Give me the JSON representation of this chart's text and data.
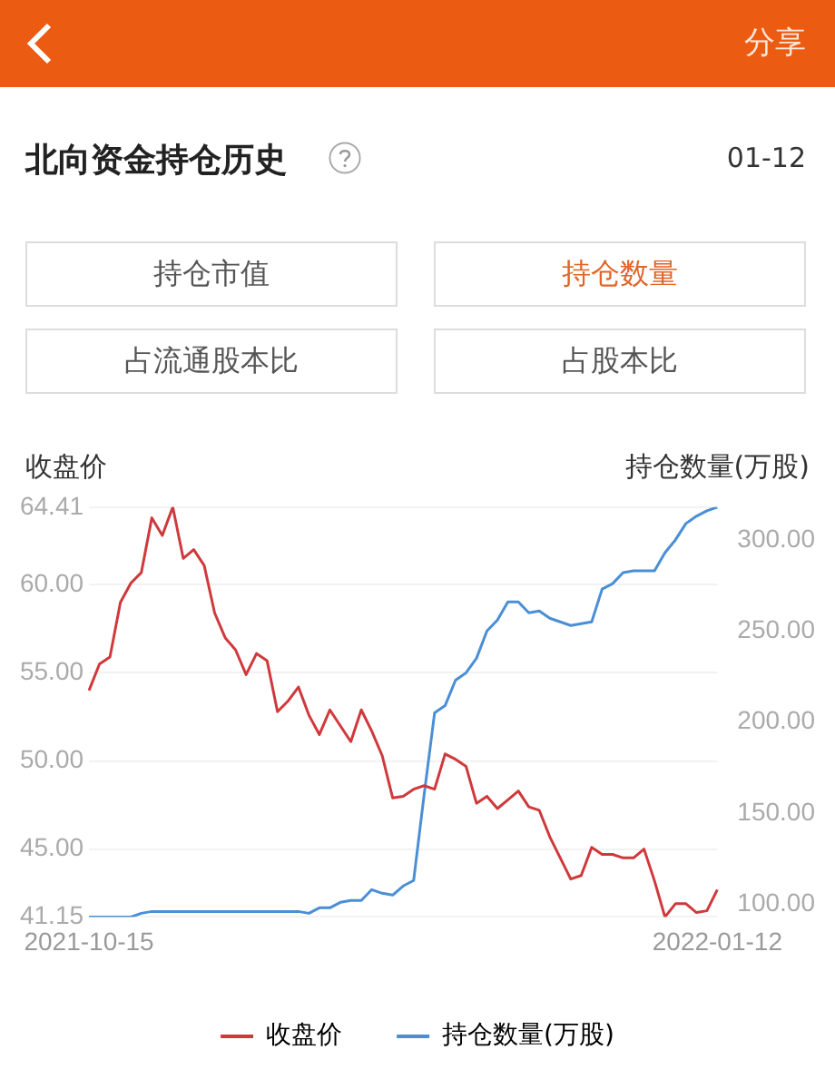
{
  "chart_data": {
    "type": "line",
    "title": "北向资金持仓历史",
    "subtitle": "01-12",
    "ylabel": "收盘价",
    "y2label": "持仓数量(万股)",
    "annotations": [
      "分享",
      "持仓市值",
      "持仓数量",
      "占流通股本比",
      "占股本比"
    ],
    "categories": [
      "2021-10-15",
      null,
      null,
      null,
      null,
      null,
      null,
      null,
      null,
      null,
      null,
      null,
      null,
      null,
      null,
      null,
      null,
      null,
      null,
      null,
      null,
      null,
      null,
      null,
      null,
      null,
      null,
      null,
      null,
      null,
      null,
      null,
      null,
      null,
      null,
      null,
      null,
      null,
      null,
      null,
      null,
      null,
      null,
      null,
      null,
      null,
      null,
      null,
      null,
      null,
      null,
      null,
      null,
      null,
      null,
      null,
      null,
      null,
      null,
      null,
      "2022-01-12"
    ],
    "series": [
      {
        "name": "收盘价",
        "color": "#d0393c",
        "axis": "y",
        "values": [
          54.0,
          55.5,
          55.9,
          59.0,
          60.1,
          60.7,
          63.8,
          62.8,
          64.41,
          61.5,
          62.0,
          61.1,
          58.4,
          57.0,
          56.3,
          54.9,
          56.1,
          55.7,
          52.8,
          53.4,
          54.2,
          52.6,
          51.5,
          52.9,
          52.0,
          51.1,
          52.9,
          51.7,
          50.3,
          47.9,
          48.0,
          48.4,
          48.6,
          48.4,
          50.4,
          50.1,
          49.7,
          47.6,
          48.0,
          47.3,
          47.8,
          48.3,
          47.4,
          47.2,
          45.7,
          44.5,
          43.3,
          43.5,
          45.1,
          44.7,
          44.7,
          44.5,
          44.5,
          45.0,
          43.2,
          41.15,
          41.9,
          41.9,
          41.4,
          41.5,
          42.7
        ]
      },
      {
        "name": "持仓数量(万股)",
        "color": "#4a8fd6",
        "axis": "y2",
        "values": [
          93,
          93,
          93,
          93,
          93,
          95,
          96,
          96,
          96,
          96,
          96,
          96,
          96,
          96,
          96,
          96,
          96,
          96,
          96,
          96,
          96,
          95,
          98,
          98,
          101,
          102,
          102,
          108,
          106,
          105,
          110,
          113,
          160,
          205,
          209,
          223,
          227,
          235,
          250,
          256,
          266,
          266,
          260,
          261,
          257,
          255,
          253,
          254,
          255,
          273,
          276,
          282,
          283,
          283,
          283,
          293,
          300,
          309,
          313,
          316,
          318
        ]
      }
    ],
    "ylim": [
      41.15,
      64.41
    ],
    "yticks": [
      41.15,
      {
        "value": 45,
        "label": "45.00"
      },
      {
        "value": 50,
        "label": "50.00"
      },
      {
        "value": 55,
        "label": "55.00"
      },
      {
        "value": 60,
        "label": "60.00"
      },
      64.41
    ],
    "y2lim": [
      93,
      318
    ],
    "y2ticks": [
      {
        "value": 100,
        "label": "100.00"
      },
      {
        "value": 150,
        "label": "150.00"
      },
      {
        "value": 200,
        "label": "200.00"
      },
      {
        "value": 250,
        "label": "250.00"
      },
      {
        "value": 300,
        "label": "300.00"
      }
    ],
    "grid": "y",
    "legend": "bottom",
    "marker": "none"
  }
}
